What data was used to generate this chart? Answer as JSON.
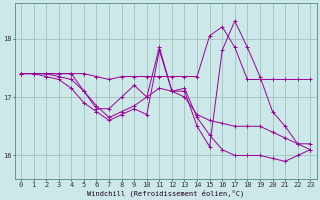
{
  "x": [
    0,
    1,
    2,
    3,
    4,
    5,
    6,
    7,
    8,
    9,
    10,
    11,
    12,
    13,
    14,
    15,
    16,
    17,
    18,
    19,
    20,
    21,
    22,
    23
  ],
  "line1": [
    17.4,
    17.4,
    17.4,
    17.4,
    17.4,
    17.4,
    17.35,
    17.3,
    17.35,
    17.35,
    17.35,
    17.35,
    17.35,
    17.35,
    17.35,
    18.05,
    18.2,
    17.85,
    17.3,
    17.3,
    17.3,
    17.3,
    17.3,
    17.3
  ],
  "line2": [
    17.4,
    17.4,
    17.4,
    17.35,
    17.3,
    17.1,
    16.85,
    16.65,
    16.75,
    16.85,
    17.0,
    17.85,
    17.1,
    17.1,
    16.5,
    16.15,
    17.8,
    18.3,
    17.85,
    17.35,
    16.75,
    16.5,
    16.2,
    16.2
  ],
  "line3": [
    17.4,
    17.4,
    17.4,
    17.4,
    17.4,
    17.1,
    16.8,
    16.8,
    17.0,
    17.2,
    17.0,
    17.15,
    17.1,
    17.0,
    16.7,
    16.6,
    16.55,
    16.5,
    16.5,
    16.5,
    16.4,
    16.3,
    16.2,
    16.1
  ],
  "line4": [
    17.4,
    17.4,
    17.35,
    17.3,
    17.15,
    16.9,
    16.75,
    16.6,
    16.7,
    16.8,
    16.7,
    17.8,
    17.1,
    17.15,
    16.65,
    16.35,
    16.1,
    16.0,
    16.0,
    16.0,
    15.95,
    15.9,
    16.0,
    16.1
  ],
  "color": "#990099",
  "bg_color": "#cce8e8",
  "grid_color": "#99bbbb",
  "xlabel": "Windchill (Refroidissement éolien,°C)",
  "ylabel_ticks": [
    16,
    17,
    18
  ],
  "xlim": [
    -0.5,
    23.5
  ],
  "ylim": [
    15.6,
    18.6
  ],
  "xticks": [
    0,
    1,
    2,
    3,
    4,
    5,
    6,
    7,
    8,
    9,
    10,
    11,
    12,
    13,
    14,
    15,
    16,
    17,
    18,
    19,
    20,
    21,
    22,
    23
  ]
}
